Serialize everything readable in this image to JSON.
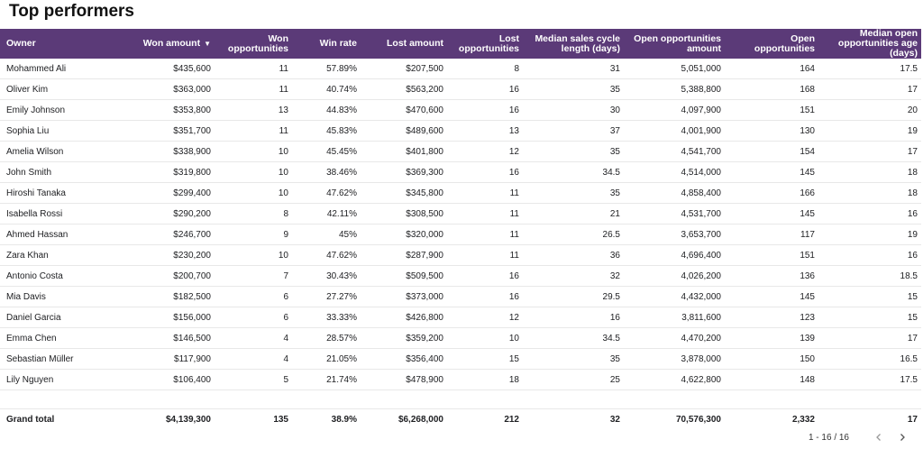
{
  "title": "Top performers",
  "columns": [
    {
      "label": "Owner"
    },
    {
      "label": "Won amount",
      "sort": "▼"
    },
    {
      "label": "Won opportunities"
    },
    {
      "label": "Win rate"
    },
    {
      "label": "Lost amount"
    },
    {
      "label": "Lost opportunities"
    },
    {
      "label": "Median sales cycle length (days)"
    },
    {
      "label": "Open opportunities amount"
    },
    {
      "label": "Open opportunities"
    },
    {
      "label": "Median open opportunities age (days)"
    }
  ],
  "rows": [
    [
      "Mohammed Ali",
      "$435,600",
      "11",
      "57.89%",
      "$207,500",
      "8",
      "31",
      "5,051,000",
      "164",
      "17.5"
    ],
    [
      "Oliver Kim",
      "$363,000",
      "11",
      "40.74%",
      "$563,200",
      "16",
      "35",
      "5,388,800",
      "168",
      "17"
    ],
    [
      "Emily Johnson",
      "$353,800",
      "13",
      "44.83%",
      "$470,600",
      "16",
      "30",
      "4,097,900",
      "151",
      "20"
    ],
    [
      "Sophia Liu",
      "$351,700",
      "11",
      "45.83%",
      "$489,600",
      "13",
      "37",
      "4,001,900",
      "130",
      "19"
    ],
    [
      "Amelia Wilson",
      "$338,900",
      "10",
      "45.45%",
      "$401,800",
      "12",
      "35",
      "4,541,700",
      "154",
      "17"
    ],
    [
      "John Smith",
      "$319,800",
      "10",
      "38.46%",
      "$369,300",
      "16",
      "34.5",
      "4,514,000",
      "145",
      "18"
    ],
    [
      "Hiroshi Tanaka",
      "$299,400",
      "10",
      "47.62%",
      "$345,800",
      "11",
      "35",
      "4,858,400",
      "166",
      "18"
    ],
    [
      "Isabella Rossi",
      "$290,200",
      "8",
      "42.11%",
      "$308,500",
      "11",
      "21",
      "4,531,700",
      "145",
      "16"
    ],
    [
      "Ahmed Hassan",
      "$246,700",
      "9",
      "45%",
      "$320,000",
      "11",
      "26.5",
      "3,653,700",
      "117",
      "19"
    ],
    [
      "Zara Khan",
      "$230,200",
      "10",
      "47.62%",
      "$287,900",
      "11",
      "36",
      "4,696,400",
      "151",
      "16"
    ],
    [
      "Antonio Costa",
      "$200,700",
      "7",
      "30.43%",
      "$509,500",
      "16",
      "32",
      "4,026,200",
      "136",
      "18.5"
    ],
    [
      "Mia Davis",
      "$182,500",
      "6",
      "27.27%",
      "$373,000",
      "16",
      "29.5",
      "4,432,000",
      "145",
      "15"
    ],
    [
      "Daniel Garcia",
      "$156,000",
      "6",
      "33.33%",
      "$426,800",
      "12",
      "16",
      "3,811,600",
      "123",
      "15"
    ],
    [
      "Emma Chen",
      "$146,500",
      "4",
      "28.57%",
      "$359,200",
      "10",
      "34.5",
      "4,470,200",
      "139",
      "17"
    ],
    [
      "Sebastian Müller",
      "$117,900",
      "4",
      "21.05%",
      "$356,400",
      "15",
      "35",
      "3,878,000",
      "150",
      "16.5"
    ],
    [
      "Lily Nguyen",
      "$106,400",
      "5",
      "21.74%",
      "$478,900",
      "18",
      "25",
      "4,622,800",
      "148",
      "17.5"
    ]
  ],
  "total": [
    "Grand total",
    "$4,139,300",
    "135",
    "38.9%",
    "$6,268,000",
    "212",
    "32",
    "70,576,300",
    "2,332",
    "17"
  ],
  "pagination": {
    "range": "1 - 16 / 16",
    "prev_icon": "chevron-left-icon",
    "next_icon": "chevron-right-icon"
  }
}
